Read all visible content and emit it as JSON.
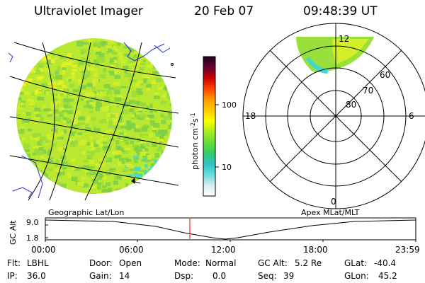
{
  "header": {
    "instrument": "Ultraviolet Imager",
    "date": "20 Feb 07",
    "time": "09:48:39 UT"
  },
  "colorbar": {
    "unit": "photon cm",
    "unit_exp1": "-2",
    "unit_mid": "s",
    "unit_exp2": "-1",
    "tick_high": "100",
    "tick_low": "10",
    "stops": [
      "#ffffff",
      "#d8eef0",
      "#66dddd",
      "#2ec4c4",
      "#33cc66",
      "#66dd33",
      "#aaee22",
      "#ffff00",
      "#ffcc00",
      "#ff9900",
      "#ff4400",
      "#cc0000",
      "#660033",
      "#220022"
    ]
  },
  "geo_panel": {
    "disk_colors": [
      "#b8e830",
      "#d4ee28",
      "#9ada3c",
      "#7ccf48",
      "#eef020"
    ]
  },
  "polar_plot": {
    "lat_labels": [
      "80",
      "70",
      "60"
    ],
    "mlt_labels": {
      "top": "12",
      "bottom": "0",
      "left": "18",
      "right": "6"
    },
    "oval_colors": [
      "#9ae03a",
      "#d4ee28",
      "#44d8c8"
    ]
  },
  "timeline": {
    "left_label": "Geographic Lat/Lon",
    "right_label": "Apex MLat/MLT",
    "y_axis_title": "GC Alt",
    "y_ticks": [
      "9.0",
      "1.8"
    ],
    "x_ticks": [
      "00:00",
      "06:00",
      "12:00",
      "18:00",
      "23:59"
    ],
    "cursor_color": "#ff0000"
  },
  "info": {
    "row1": [
      {
        "label": "Flt:",
        "value": "LBHL"
      },
      {
        "label": "Door:",
        "value": "Open"
      },
      {
        "label": "Mode:",
        "value": "Normal"
      },
      {
        "label": "GC Alt:",
        "value": "5.2 Re"
      },
      {
        "label": "GLat:",
        "value": "-40.4"
      }
    ],
    "row2": [
      {
        "label": "IP:",
        "value": "36.0"
      },
      {
        "label": "Gain:",
        "value": "14"
      },
      {
        "label": "Dsp:",
        "value": "0.0"
      },
      {
        "label": "Seq:",
        "value": "39"
      },
      {
        "label": "GLon:",
        "value": "45.2"
      }
    ]
  }
}
